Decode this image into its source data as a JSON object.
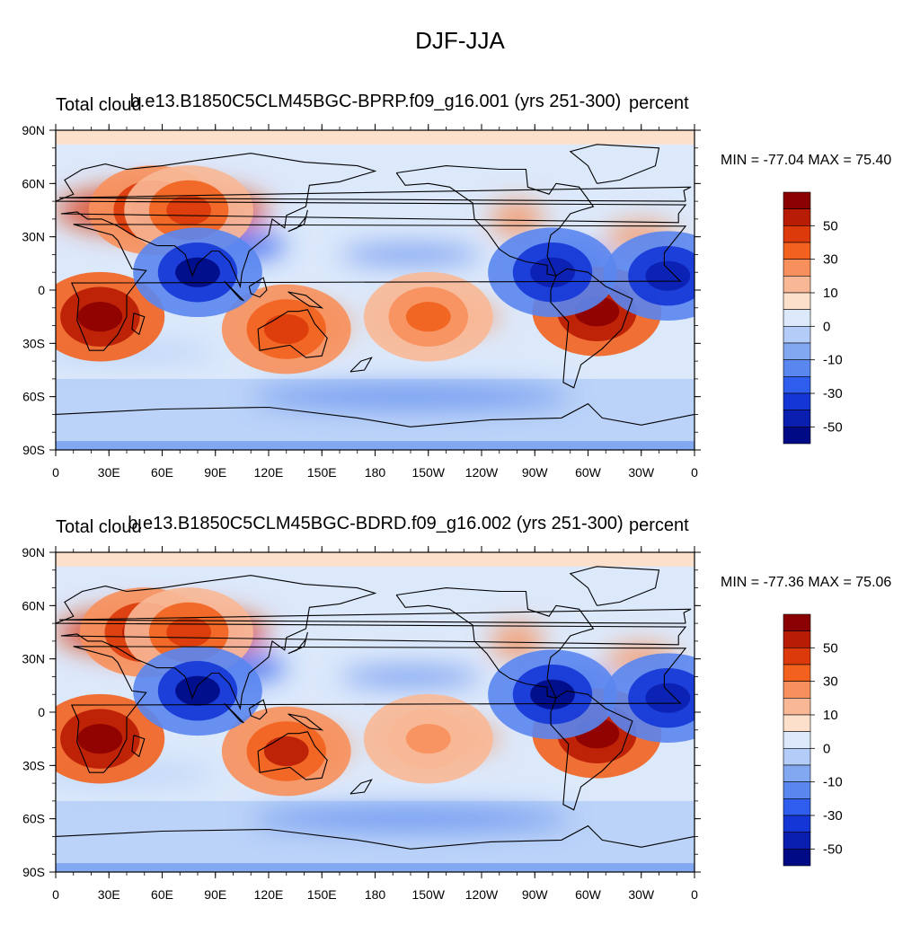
{
  "figure": {
    "title": "DJF-JJA"
  },
  "colorbar": {
    "labels": [
      "50",
      "30",
      "10",
      "0",
      "-10",
      "-30",
      "-50"
    ],
    "colors": [
      "#8b0000",
      "#b81c04",
      "#dc3a0a",
      "#f2621e",
      "#f7905c",
      "#f8b896",
      "#fde0cc",
      "#dce9fb",
      "#b3cdf8",
      "#82a8f2",
      "#5a86ef",
      "#2f5ded",
      "#1436d7",
      "#0a1fb0",
      "#000a85"
    ]
  },
  "map_axes": {
    "y_ticks": [
      "90N",
      "60N",
      "30N",
      "0",
      "30S",
      "60S",
      "90S"
    ],
    "x_ticks": [
      "0",
      "30E",
      "60E",
      "90E",
      "120E",
      "150E",
      "180",
      "150W",
      "120W",
      "90W",
      "60W",
      "30W",
      "0"
    ]
  },
  "chart_data": [
    {
      "type": "heatmap",
      "panel": "top",
      "variable_label": "Total cloud",
      "case_label": "b.e13.B1850C5CLM45BGC-BPRP.f09_g16.001 (yrs 251-300)",
      "units": "percent",
      "min_max_label": "MIN = -77.04 MAX =  75.40",
      "min": -77.04,
      "max": 75.4,
      "x_range_deg": [
        0,
        360
      ],
      "y_range_deg": [
        -90,
        90
      ],
      "features": [
        {
          "lon": 25,
          "lat": -15,
          "value": 70
        },
        {
          "lon": 55,
          "lat": 45,
          "value": 55
        },
        {
          "lon": 75,
          "lat": 45,
          "value": 40
        },
        {
          "lon": 305,
          "lat": -12,
          "value": 70
        },
        {
          "lon": 130,
          "lat": -22,
          "value": 45
        },
        {
          "lon": 80,
          "lat": 10,
          "value": -65
        },
        {
          "lon": 280,
          "lat": 10,
          "value": -60
        },
        {
          "lon": 345,
          "lat": 8,
          "value": -55
        },
        {
          "lon": 210,
          "lat": -15,
          "value": 30
        }
      ]
    },
    {
      "type": "heatmap",
      "panel": "bottom",
      "variable_label": "Total cloud",
      "case_label": "b.e13.B1850C5CLM45BGC-BDRD.f09_g16.002 (yrs 251-300)",
      "units": "percent",
      "min_max_label": "MIN = -77.36 MAX =  75.06",
      "min": -77.36,
      "max": 75.06,
      "x_range_deg": [
        0,
        360
      ],
      "y_range_deg": [
        -90,
        90
      ],
      "features": [
        {
          "lon": 25,
          "lat": -15,
          "value": 70
        },
        {
          "lon": 50,
          "lat": 45,
          "value": 55
        },
        {
          "lon": 75,
          "lat": 45,
          "value": 40
        },
        {
          "lon": 305,
          "lat": -12,
          "value": 68
        },
        {
          "lon": 130,
          "lat": -22,
          "value": 50
        },
        {
          "lon": 80,
          "lat": 12,
          "value": -65
        },
        {
          "lon": 280,
          "lat": 10,
          "value": -62
        },
        {
          "lon": 345,
          "lat": 8,
          "value": -55
        },
        {
          "lon": 210,
          "lat": -15,
          "value": 25
        }
      ]
    }
  ]
}
